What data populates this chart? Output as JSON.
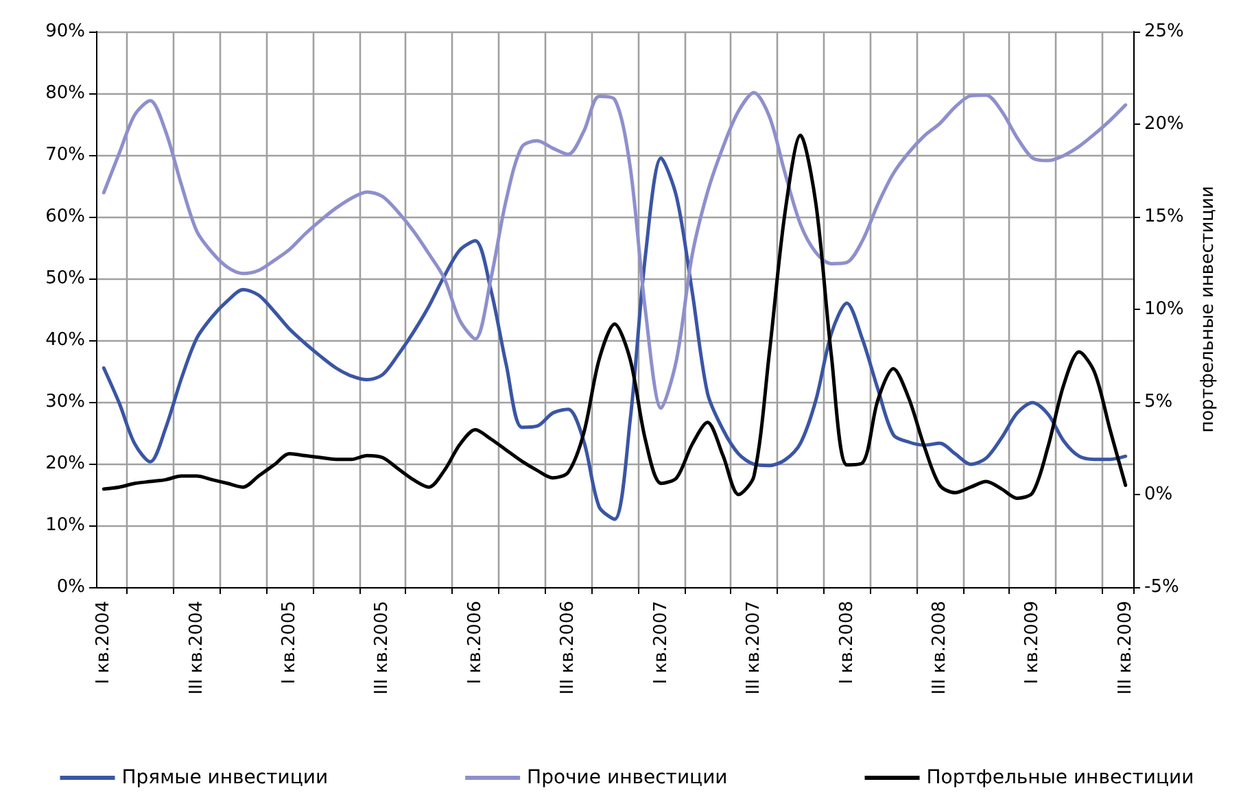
{
  "chart_data": {
    "type": "line",
    "y2label": "портфельные инвестиции",
    "categories": [
      "I кв.2004",
      null,
      null,
      null,
      null,
      null,
      "III кв.2004",
      null,
      null,
      null,
      null,
      null,
      "I кв.2005",
      null,
      null,
      null,
      null,
      null,
      "III кв.2005",
      null,
      null,
      null,
      null,
      null,
      "I кв.2006",
      null,
      null,
      null,
      null,
      null,
      "III кв.2006",
      null,
      null,
      null,
      null,
      null,
      "I кв.2007",
      null,
      null,
      null,
      null,
      null,
      "III кв.2007",
      null,
      null,
      null,
      null,
      null,
      "I кв.2008",
      null,
      null,
      null,
      null,
      null,
      "III кв.2008",
      null,
      null,
      null,
      null,
      null,
      "I кв.2009",
      null,
      null,
      null,
      null,
      null,
      "III кв.2009"
    ],
    "ylim": [
      0,
      90
    ],
    "yticks": [
      {
        "value": 0,
        "label": "0%"
      },
      {
        "value": 10,
        "label": "10%"
      },
      {
        "value": 20,
        "label": "20%"
      },
      {
        "value": 30,
        "label": "30%"
      },
      {
        "value": 40,
        "label": "40%"
      },
      {
        "value": 50,
        "label": "50%"
      },
      {
        "value": 60,
        "label": "60%"
      },
      {
        "value": 70,
        "label": "70%"
      },
      {
        "value": 80,
        "label": "80%"
      },
      {
        "value": 90,
        "label": "90%"
      }
    ],
    "y2lim": [
      -5,
      25
    ],
    "y2ticks": [
      {
        "value": -5,
        "label": "-5%"
      },
      {
        "value": 0,
        "label": "0%"
      },
      {
        "value": 5,
        "label": "5%"
      },
      {
        "value": 10,
        "label": "10%"
      },
      {
        "value": 15,
        "label": "15%"
      },
      {
        "value": 20,
        "label": "20%"
      },
      {
        "value": 25,
        "label": "25%"
      }
    ],
    "grid": true,
    "legend": "bottom",
    "marker": "none",
    "line_style": "solid",
    "series": [
      {
        "name": "Прямые инвестиции",
        "color": "#3a55a4",
        "values": [
          35.5,
          29.8,
          23.2,
          20.3,
          25.8,
          33.7,
          40.3,
          43.8,
          46.4,
          48.2,
          47.3,
          44.7,
          41.8,
          39.5,
          37.4,
          35.5,
          34.2,
          33.6,
          34.4,
          37.6,
          41.3,
          45.5,
          50.4,
          54.6,
          56.1,
          48.2,
          36,
          25.9,
          26.1,
          28.2,
          28.8,
          23.7,
          13,
          11,
          27,
          54,
          69.5,
          63.2,
          48,
          31.4,
          25.5,
          21.6,
          19.9,
          19.7,
          20.6,
          23.3,
          30.3,
          41.1,
          46,
          40.2,
          32.1,
          24.7,
          23.5,
          23,
          23.3,
          21.6,
          19.9,
          20.9,
          24.2,
          28.2,
          29.9,
          28,
          23.7,
          21.2,
          20.7,
          20.7,
          21.2
        ]
      },
      {
        "name": "Прочие инвестиции",
        "color": "#8e8fcc",
        "values": [
          63.9,
          70.3,
          76.5,
          78.8,
          73.8,
          65.3,
          57.7,
          54.2,
          51.8,
          50.8,
          51.3,
          52.9,
          54.7,
          57.2,
          59.4,
          61.4,
          63,
          64,
          63.3,
          60.8,
          57.7,
          54,
          50,
          43.2,
          40.2,
          49.9,
          62.8,
          71.3,
          72.3,
          71.1,
          70.1,
          73.8,
          79.5,
          79,
          68.1,
          44.5,
          29,
          36.9,
          53.7,
          64,
          71.3,
          77.1,
          80.1,
          76.2,
          67.1,
          58.8,
          54.2,
          52.4,
          52.6,
          56.1,
          62,
          67,
          70.4,
          73.1,
          75.1,
          77.8,
          79.6,
          79.7,
          77.1,
          72.8,
          69.5,
          69.1,
          69.9,
          71.4,
          73.4,
          75.6,
          78.1
        ]
      },
      {
        "name": "Портфельные инвестиции",
        "color": "#000000",
        "axis": "y2",
        "values": [
          0.3,
          0.4,
          0.6,
          0.7,
          0.8,
          1.0,
          1.0,
          0.8,
          0.6,
          0.4,
          1.0,
          1.6,
          2.2,
          2.1,
          2.0,
          1.9,
          1.9,
          2.1,
          2.0,
          1.4,
          0.8,
          0.4,
          1.3,
          2.7,
          3.5,
          3.0,
          2.4,
          1.8,
          1.3,
          0.9,
          1.2,
          3.3,
          7.3,
          9.2,
          7.3,
          2.9,
          0.6,
          0.9,
          2.7,
          3.9,
          2.1,
          0,
          1.0,
          7.7,
          15.2,
          19.4,
          15.7,
          7.5,
          1.6,
          1.7,
          5.1,
          6.8,
          5.2,
          2.6,
          0.5,
          0.1,
          0.4,
          0.7,
          0.3,
          -0.2,
          0.1,
          2.6,
          5.9,
          7.7,
          6.6,
          3.5,
          0.5
        ]
      }
    ]
  }
}
